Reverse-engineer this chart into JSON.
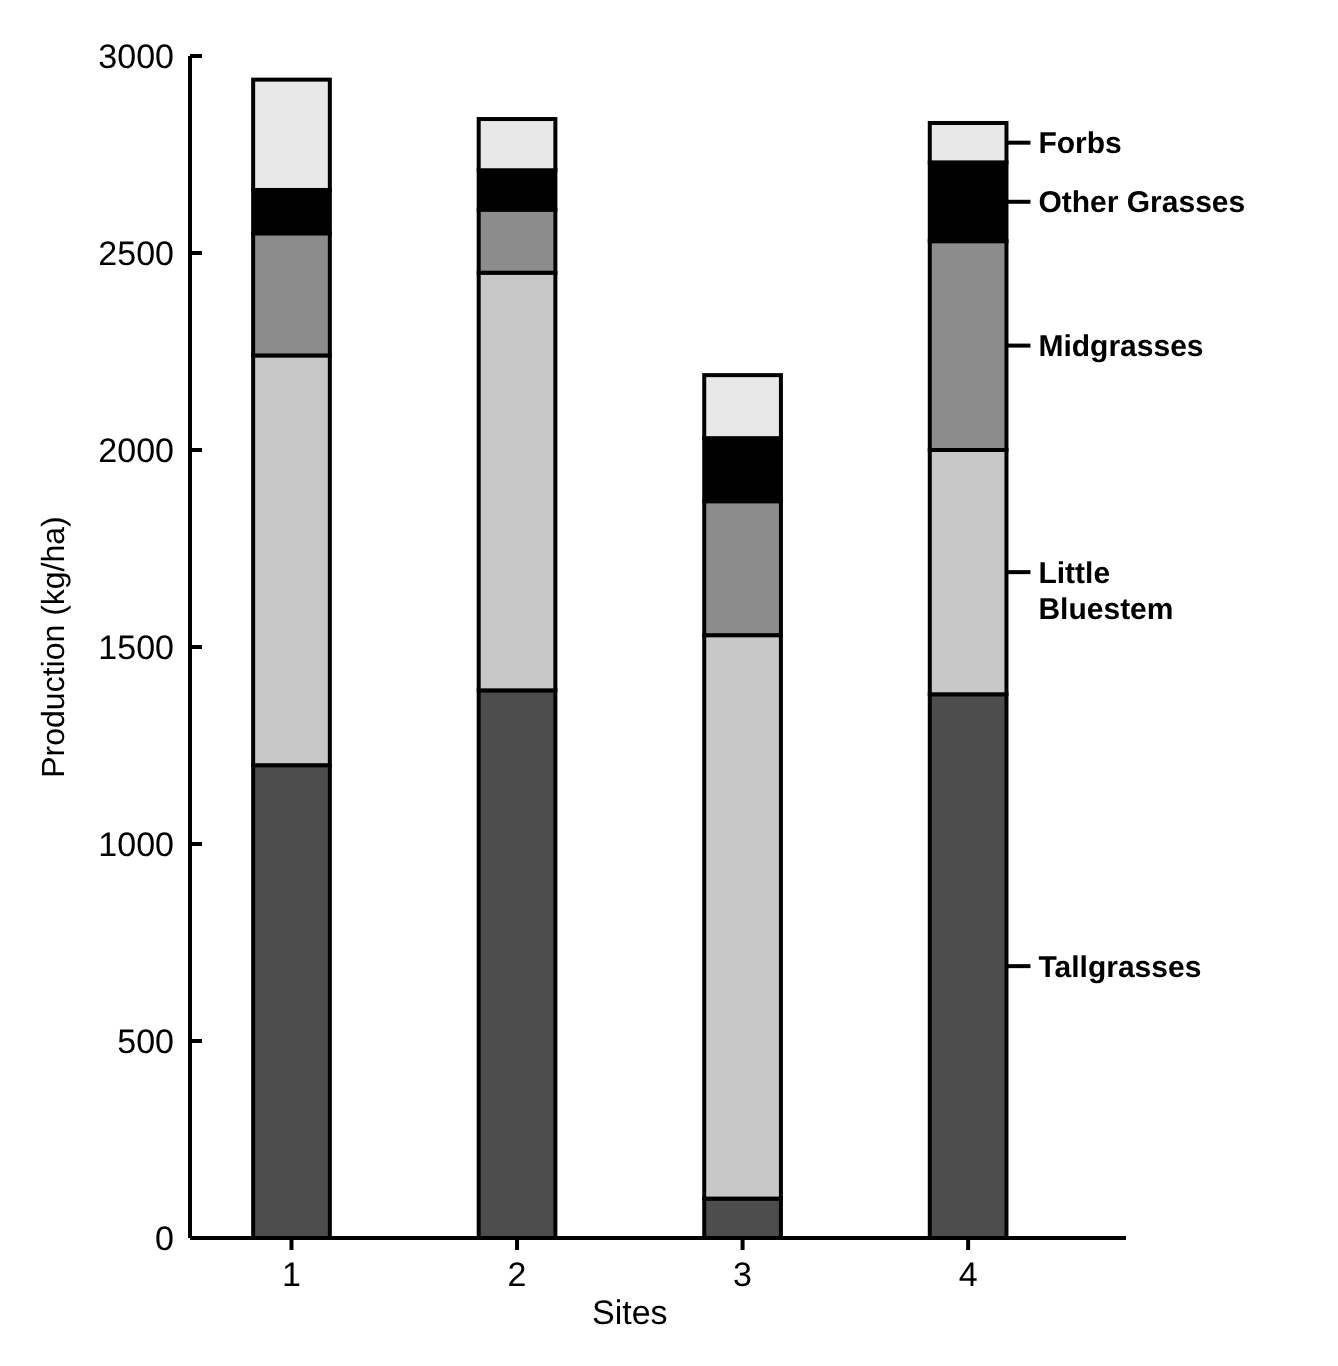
{
  "chart_data": {
    "type": "bar",
    "stacked": true,
    "xlabel": "Sites",
    "ylabel": "Production (kg/ha)",
    "categories": [
      "1",
      "2",
      "3",
      "4"
    ],
    "series": [
      {
        "name": "Tallgrasses",
        "color": "#4d4d4d",
        "values": [
          1200,
          1390,
          100,
          1380
        ]
      },
      {
        "name": "Little Bluestem",
        "color": "#c8c8c8",
        "values": [
          1040,
          1060,
          1430,
          620
        ]
      },
      {
        "name": "Midgrasses",
        "color": "#8c8c8c",
        "values": [
          310,
          160,
          340,
          530
        ]
      },
      {
        "name": "Other Grasses",
        "color": "#000000",
        "values": [
          110,
          100,
          160,
          200
        ]
      },
      {
        "name": "Forbs",
        "color": "#e8e8e8",
        "values": [
          280,
          130,
          160,
          100
        ]
      }
    ],
    "ylim": [
      0,
      3000
    ],
    "yticks": [
      0,
      500,
      1000,
      1500,
      2000,
      2500,
      3000
    ],
    "grid": false,
    "legend": "right"
  }
}
